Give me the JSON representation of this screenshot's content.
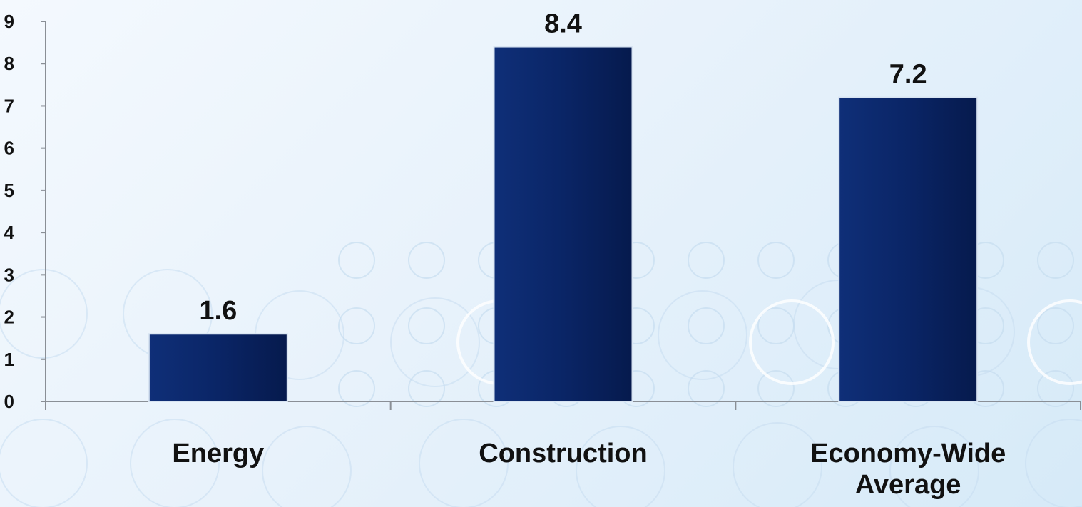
{
  "chart_data": {
    "type": "bar",
    "categories": [
      "Energy",
      "Construction",
      "Economy-Wide Average"
    ],
    "category_lines": [
      [
        "Energy"
      ],
      [
        "Construction"
      ],
      [
        "Economy-Wide",
        "Average"
      ]
    ],
    "values": [
      1.6,
      8.4,
      7.2
    ],
    "data_labels": [
      "1.6",
      "8.4",
      "7.2"
    ],
    "yticks": [
      0,
      1,
      2,
      3,
      4,
      5,
      6,
      7,
      8,
      9
    ],
    "ylim": [
      0,
      9
    ],
    "title": "",
    "xlabel": "",
    "ylabel": "",
    "grid": false,
    "legend": "none",
    "colors": {
      "bar": "#0a2566",
      "bar_edge": "#d8e4f2",
      "axis": "#8a8f96",
      "text": "#111111",
      "circles": "#c6ddf0"
    }
  }
}
